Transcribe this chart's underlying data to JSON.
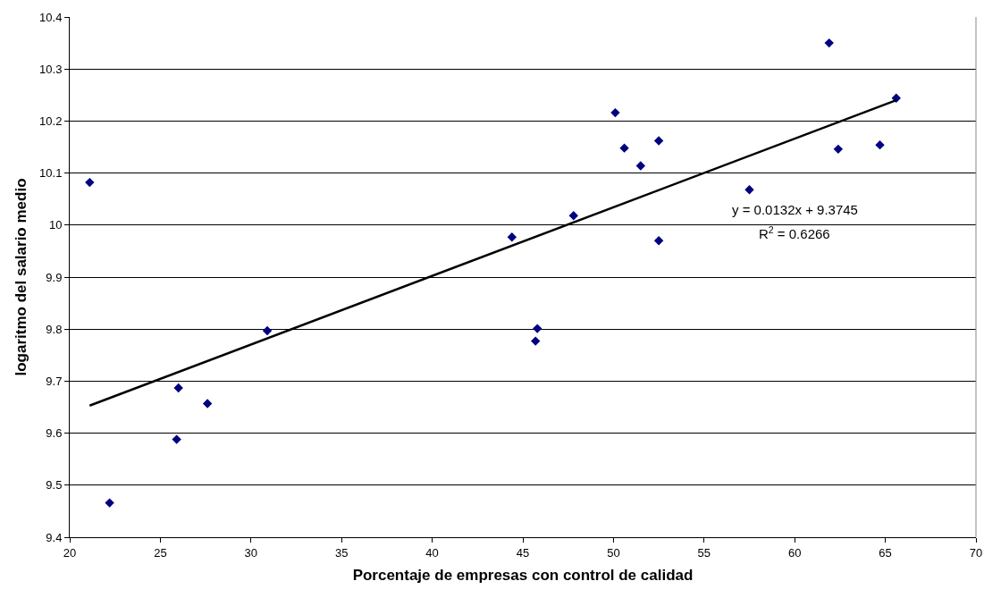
{
  "chart_data": {
    "type": "scatter",
    "xlabel": "Porcentaje de empresas con control de calidad",
    "ylabel": "logaritmo del salario medio",
    "annotations": [
      "y = 0.0132x + 9.3745",
      "R$^{2}$ = 0.6266"
    ],
    "series": [
      {
        "type": "scatter",
        "color": "#000080",
        "marker": "diamond",
        "x": [
          21.1,
          22.2,
          25.9,
          26.0,
          27.6,
          30.9,
          44.4,
          45.7,
          45.8,
          47.8,
          50.1,
          50.6,
          51.5,
          52.5,
          52.5,
          57.5,
          61.9,
          62.4,
          64.7,
          65.6
        ],
        "values": [
          10.082,
          9.466,
          9.588,
          9.687,
          9.657,
          9.797,
          9.977,
          9.777,
          9.801,
          10.018,
          10.216,
          10.148,
          10.114,
          10.162,
          9.97,
          10.068,
          10.35,
          10.146,
          10.154,
          10.244
        ]
      },
      {
        "type": "line",
        "color": "#000000",
        "marker": "none",
        "line_style": "solid",
        "x": [
          21.1,
          65.6
        ],
        "values": [
          9.653,
          10.24
        ]
      }
    ],
    "xlim": [
      20,
      70
    ],
    "xticks": [
      20,
      25,
      30,
      35,
      40,
      45,
      50,
      55,
      60,
      65,
      70
    ],
    "ylim": [
      9.4,
      10.4
    ],
    "yticks": [
      9.4,
      9.5,
      9.6,
      9.7,
      9.8,
      9.9,
      10,
      10.1,
      10.2,
      10.3,
      10.4
    ],
    "grid": "y"
  }
}
